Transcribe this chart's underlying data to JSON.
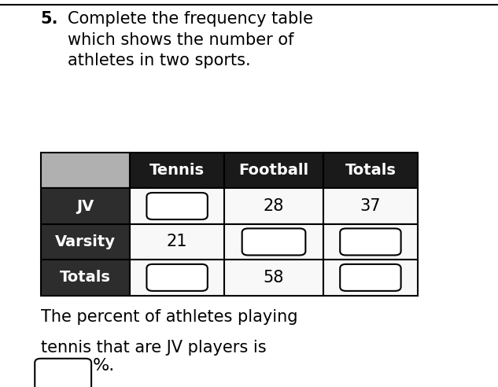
{
  "title_number": "5.",
  "title_text": "Complete the frequency table\nwhich shows the number of\nathletes in two sports.",
  "col_headers": [
    "Tennis",
    "Football",
    "Totals"
  ],
  "row_headers": [
    "JV",
    "Varsity",
    "Totals"
  ],
  "header_bg": "#1a1a1a",
  "header_text_color": "#ffffff",
  "row_header_bg": "#2d2d2d",
  "row_header_text_color": "#ffffff",
  "known_values": {
    "JV_Football": "28",
    "JV_Totals": "37",
    "Varsity_Tennis": "21",
    "Totals_Football": "58"
  },
  "cell_data": [
    [
      null,
      "28",
      "37"
    ],
    [
      "21",
      null,
      null
    ],
    [
      null,
      "58",
      null
    ]
  ],
  "bottom_text_line1": "The percent of athletes playing",
  "bottom_text_line2": "tennis that are JV players is",
  "percent_sign": "%.",
  "bg_color": "#ffffff",
  "border_color": "#000000",
  "font_size_title": 15,
  "font_size_table": 14,
  "font_size_bottom": 15
}
